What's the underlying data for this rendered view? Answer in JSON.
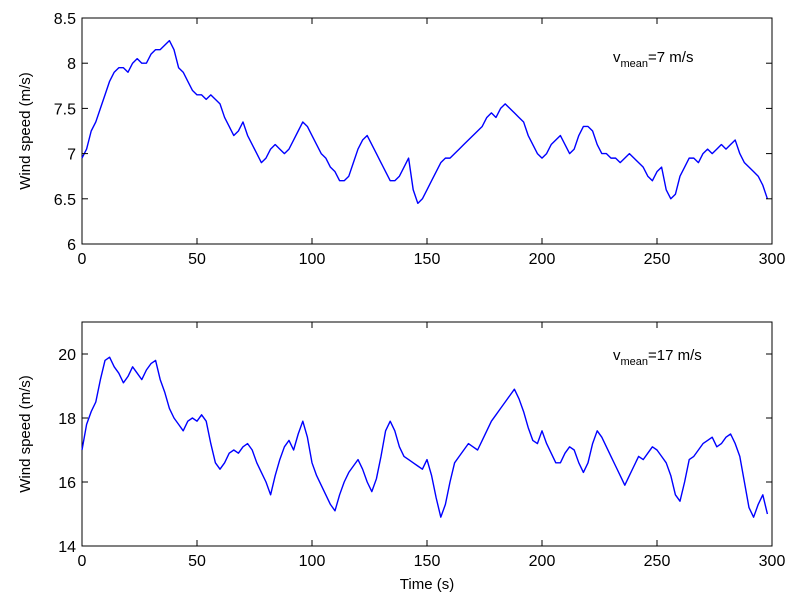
{
  "chart_data": [
    {
      "type": "line",
      "title": "",
      "xlabel": "",
      "ylabel": "Wind speed (m/s)",
      "xlim": [
        0,
        300
      ],
      "ylim": [
        6,
        8.5
      ],
      "xticks": [
        0,
        50,
        100,
        150,
        200,
        250,
        300
      ],
      "xtick_labels": [
        "0",
        "50",
        "100",
        "150",
        "200",
        "250",
        "300"
      ],
      "yticks": [
        6,
        6.5,
        7,
        7.5,
        8,
        8.5
      ],
      "ytick_labels": [
        "6",
        "6.5",
        "7",
        "7.5",
        "8",
        "8.5"
      ],
      "grid": false,
      "color": "#0000ff",
      "annotation": {
        "prefix": "v",
        "sub": "mean",
        "suffix": "=7 m/s"
      },
      "series": [
        {
          "values": [
            6.95,
            7.05,
            7.25,
            7.35,
            7.5,
            7.65,
            7.8,
            7.9,
            7.95,
            7.95,
            7.9,
            8.0,
            8.05,
            8.0,
            8.0,
            8.1,
            8.15,
            8.15,
            8.2,
            8.25,
            8.15,
            7.95,
            7.9,
            7.8,
            7.7,
            7.65,
            7.65,
            7.6,
            7.65,
            7.6,
            7.55,
            7.4,
            7.3,
            7.2,
            7.25,
            7.35,
            7.2,
            7.1,
            7.0,
            6.9,
            6.95,
            7.05,
            7.1,
            7.05,
            7.0,
            7.05,
            7.15,
            7.25,
            7.35,
            7.3,
            7.2,
            7.1,
            7.0,
            6.95,
            6.85,
            6.8,
            6.7,
            6.7,
            6.75,
            6.9,
            7.05,
            7.15,
            7.2,
            7.1,
            7.0,
            6.9,
            6.8,
            6.7,
            6.7,
            6.75,
            6.85,
            6.95,
            6.6,
            6.45,
            6.5,
            6.6,
            6.7,
            6.8,
            6.9,
            6.95,
            6.95,
            7.0,
            7.05,
            7.1,
            7.15,
            7.2,
            7.25,
            7.3,
            7.4,
            7.45,
            7.4,
            7.5,
            7.55,
            7.5,
            7.45,
            7.4,
            7.35,
            7.2,
            7.1,
            7.0,
            6.95,
            7.0,
            7.1,
            7.15,
            7.2,
            7.1,
            7.0,
            7.05,
            7.2,
            7.3,
            7.3,
            7.25,
            7.1,
            7.0,
            7.0,
            6.95,
            6.95,
            6.9,
            6.95,
            7.0,
            6.95,
            6.9,
            6.85,
            6.75,
            6.7,
            6.8,
            6.85,
            6.6,
            6.5,
            6.55,
            6.75,
            6.85,
            6.95,
            6.95,
            6.9,
            7.0,
            7.05,
            7.0,
            7.05,
            7.1,
            7.05,
            7.1,
            7.15,
            7.0,
            6.9,
            6.85,
            6.8,
            6.75,
            6.65,
            6.5
          ],
          "x_step": 2
        }
      ]
    },
    {
      "type": "line",
      "title": "",
      "xlabel": "Time (s)",
      "ylabel": "Wind speed (m/s)",
      "xlim": [
        0,
        300
      ],
      "ylim": [
        14,
        21
      ],
      "xticks": [
        0,
        50,
        100,
        150,
        200,
        250,
        300
      ],
      "xtick_labels": [
        "0",
        "50",
        "100",
        "150",
        "200",
        "250",
        "300"
      ],
      "yticks": [
        14,
        16,
        18,
        20
      ],
      "ytick_labels": [
        "14",
        "16",
        "18",
        "20"
      ],
      "grid": false,
      "color": "#0000ff",
      "annotation": {
        "prefix": "v",
        "sub": "mean",
        "suffix": "=17 m/s"
      },
      "series": [
        {
          "values": [
            17.0,
            17.8,
            18.2,
            18.5,
            19.2,
            19.8,
            19.9,
            19.6,
            19.4,
            19.1,
            19.3,
            19.6,
            19.4,
            19.2,
            19.5,
            19.7,
            19.8,
            19.2,
            18.8,
            18.3,
            18.0,
            17.8,
            17.6,
            17.9,
            18.0,
            17.9,
            18.1,
            17.9,
            17.2,
            16.6,
            16.4,
            16.6,
            16.9,
            17.0,
            16.9,
            17.1,
            17.2,
            17.0,
            16.6,
            16.3,
            16.0,
            15.6,
            16.2,
            16.7,
            17.1,
            17.3,
            17.0,
            17.5,
            17.9,
            17.4,
            16.6,
            16.2,
            15.9,
            15.6,
            15.3,
            15.1,
            15.6,
            16.0,
            16.3,
            16.5,
            16.7,
            16.4,
            16.0,
            15.7,
            16.1,
            16.8,
            17.6,
            17.9,
            17.6,
            17.1,
            16.8,
            16.7,
            16.6,
            16.5,
            16.4,
            16.7,
            16.2,
            15.5,
            14.9,
            15.3,
            16.0,
            16.6,
            16.8,
            17.0,
            17.2,
            17.1,
            17.0,
            17.3,
            17.6,
            17.9,
            18.1,
            18.3,
            18.5,
            18.7,
            18.9,
            18.6,
            18.2,
            17.7,
            17.3,
            17.2,
            17.6,
            17.2,
            16.9,
            16.6,
            16.6,
            16.9,
            17.1,
            17.0,
            16.6,
            16.3,
            16.6,
            17.2,
            17.6,
            17.4,
            17.1,
            16.8,
            16.5,
            16.2,
            15.9,
            16.2,
            16.5,
            16.8,
            16.7,
            16.9,
            17.1,
            17.0,
            16.8,
            16.6,
            16.2,
            15.6,
            15.4,
            16.0,
            16.7,
            16.8,
            17.0,
            17.2,
            17.3,
            17.4,
            17.1,
            17.2,
            17.4,
            17.5,
            17.2,
            16.8,
            16.0,
            15.2,
            14.9,
            15.3,
            15.6,
            15.0
          ],
          "x_step": 2
        }
      ]
    }
  ],
  "x_shared_label": "Time (s)"
}
